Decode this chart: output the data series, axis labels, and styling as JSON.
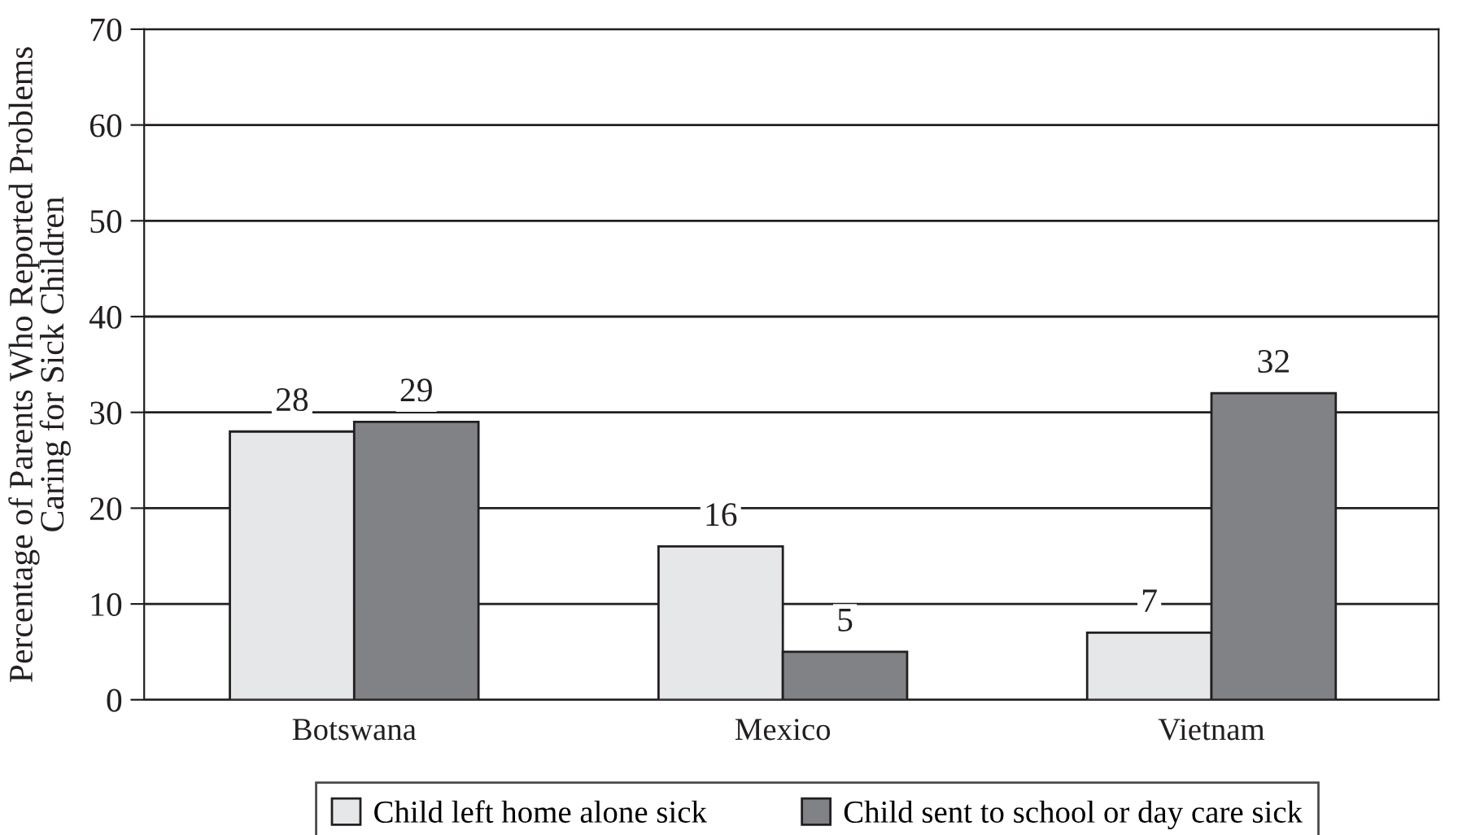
{
  "chart_data": {
    "type": "bar",
    "ylabel": "Percentage of Parents Who Reported Problems\nCaring for Sick Children",
    "categories": [
      "Botswana",
      "Mexico",
      "Vietnam"
    ],
    "series": [
      {
        "name": "Child left home alone sick",
        "color": "#e6e7e8",
        "values": [
          28,
          16,
          7
        ]
      },
      {
        "name": "Child sent to school or day care sick",
        "color": "#808285",
        "values": [
          29,
          5,
          32
        ]
      }
    ],
    "ylim": [
      0,
      70
    ],
    "yticks": [
      0,
      10,
      20,
      30,
      40,
      50,
      60,
      70
    ],
    "grid": "y",
    "legend": "bottom",
    "data_labels": true
  }
}
